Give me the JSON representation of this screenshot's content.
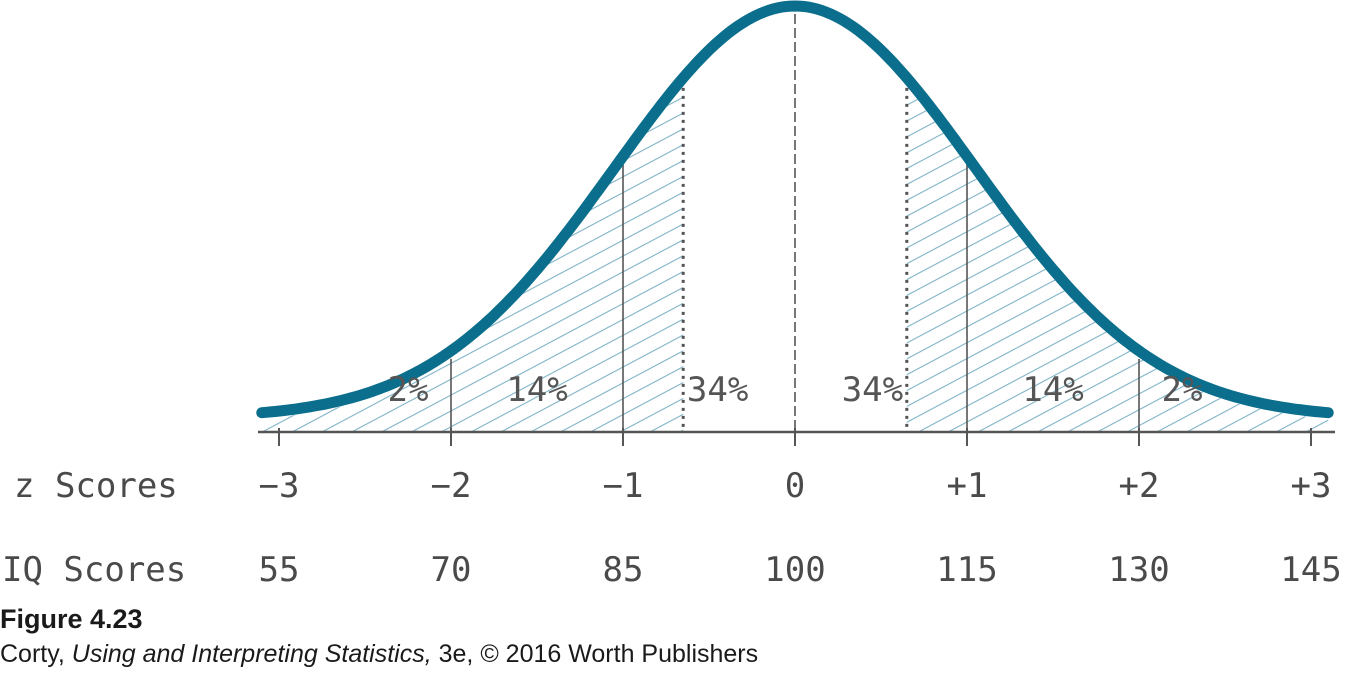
{
  "colors": {
    "curve": "#0a6e8c",
    "hatch": "#7fb3c6",
    "axis": "#555555",
    "divider": "#555555",
    "text": "#4a4a4a"
  },
  "rows": {
    "z_label": "z Scores",
    "iq_label": "IQ Scores"
  },
  "ticks": [
    {
      "z": -3,
      "z_label": "−3",
      "iq_label": "55"
    },
    {
      "z": -2,
      "z_label": "−2",
      "iq_label": "70"
    },
    {
      "z": -1,
      "z_label": "−1",
      "iq_label": "85"
    },
    {
      "z": 0,
      "z_label": "0",
      "iq_label": "100"
    },
    {
      "z": 1,
      "z_label": "+1",
      "iq_label": "115"
    },
    {
      "z": 2,
      "z_label": "+2",
      "iq_label": "130"
    },
    {
      "z": 3,
      "z_label": "+3",
      "iq_label": "145"
    }
  ],
  "regions": [
    {
      "from": -3,
      "to": -2,
      "label": "2%",
      "percent": 2,
      "shaded": true
    },
    {
      "from": -2,
      "to": -1,
      "label": "14%",
      "percent": 14,
      "shaded": true
    },
    {
      "from": -1,
      "to": 0,
      "label": "34%",
      "percent": 34,
      "shaded": false
    },
    {
      "from": 0,
      "to": 1,
      "label": "34%",
      "percent": 34,
      "shaded": false
    },
    {
      "from": 1,
      "to": 2,
      "label": "14%",
      "percent": 14,
      "shaded": true
    },
    {
      "from": 2,
      "to": 3,
      "label": "2%",
      "percent": 2,
      "shaded": true
    }
  ],
  "caption": {
    "title": "Figure 4.23",
    "credit_author": "Corty, ",
    "credit_book": "Using and Interpreting Statistics,",
    "credit_rest": " 3e, © 2016 Worth Publishers"
  }
}
